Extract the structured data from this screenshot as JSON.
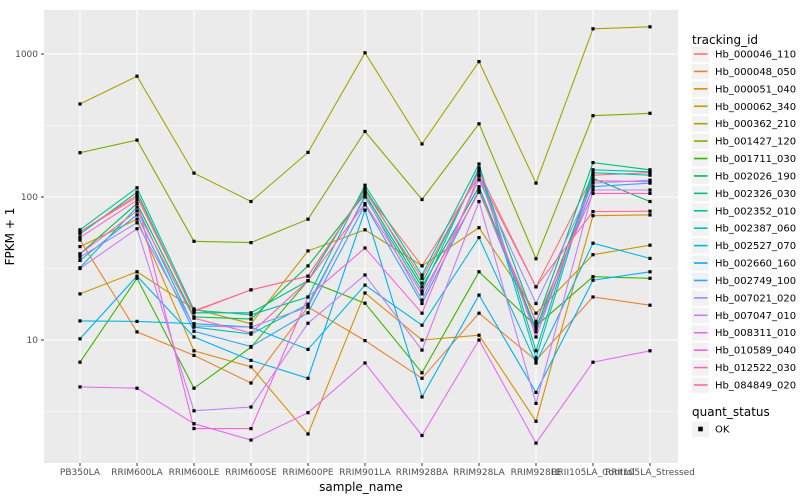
{
  "figure": {
    "background": "#FFFFFF",
    "panel_background": "#EBEBEB",
    "grid_color": "#FFFFFF",
    "tick_label_color": "#4D4D4D",
    "point_color": "#000000"
  },
  "chart_data": {
    "type": "line",
    "title": "",
    "xlabel": "sample_name",
    "ylabel": "FPKM + 1",
    "y_scale": "log10",
    "ylim": [
      1.45,
      2000
    ],
    "y_ticks": [
      1000,
      100,
      10
    ],
    "y_minor_ticks": [
      316.23,
      31.623,
      3.1623
    ],
    "grid": "on",
    "legend_position": "right",
    "legend_title": "tracking_id",
    "legend2_title": "quant_status",
    "quant_status_items": [
      "OK"
    ],
    "categories": [
      "PB350LA",
      "RRIM600LA",
      "RRIM600LE",
      "RRIM600SE",
      "RRIM600PE",
      "RRIM901LA",
      "RRIM928BA",
      "RRIM928LA",
      "RRIM928LE",
      "RRII105LA_Control",
      "RRII105LA_Stressed"
    ],
    "series": [
      {
        "name": "Hb_000046_110",
        "color": "#F8766D",
        "values": [
          57,
          100,
          16,
          22.4,
          28,
          110,
          33,
          140,
          23.5,
          142,
          148
        ]
      },
      {
        "name": "Hb_000048_050",
        "color": "#EA8331",
        "values": [
          50,
          11.4,
          7.8,
          5.0,
          17,
          9.9,
          5.4,
          15.4,
          7.2,
          20,
          17.5
        ]
      },
      {
        "name": "Hb_000051_040",
        "color": "#D89000",
        "values": [
          45,
          70,
          8.4,
          6.5,
          2.2,
          21.3,
          10,
          10.8,
          2.7,
          74,
          75
        ]
      },
      {
        "name": "Hb_000062_340",
        "color": "#C09B00",
        "values": [
          21,
          30,
          16.5,
          13,
          42,
          59,
          33,
          61,
          15.4,
          39.5,
          46
        ]
      },
      {
        "name": "Hb_000362_210",
        "color": "#A3A500",
        "values": [
          447,
          700,
          147,
          93,
          205,
          1020,
          235,
          885,
          125,
          1500,
          1550
        ]
      },
      {
        "name": "Hb_001427_120",
        "color": "#7CAE00",
        "values": [
          204,
          250,
          49,
          48,
          70,
          287,
          96,
          325,
          37,
          370,
          385
        ]
      },
      {
        "name": "Hb_001711_030",
        "color": "#39B600",
        "values": [
          7,
          27,
          4.6,
          8.9,
          26,
          18.1,
          5.9,
          30,
          12.5,
          27.7,
          27
        ]
      },
      {
        "name": "Hb_002026_190",
        "color": "#00BB4E",
        "values": [
          40,
          90,
          14.5,
          14,
          33,
          105,
          23.5,
          118,
          12,
          135,
          93
        ]
      },
      {
        "name": "Hb_002326_030",
        "color": "#00BF7D",
        "values": [
          55,
          108,
          15.5,
          15.5,
          26,
          115,
          25,
          155,
          13.1,
          174,
          155
        ]
      },
      {
        "name": "Hb_002352_010",
        "color": "#00C1A3",
        "values": [
          59,
          116,
          16.2,
          15,
          20,
          121,
          28.5,
          170,
          8.4,
          155,
          150
        ]
      },
      {
        "name": "Hb_002387_060",
        "color": "#00BFC4",
        "values": [
          32,
          85,
          12.3,
          11,
          17.8,
          100,
          22,
          160,
          7.5,
          148,
          142
        ]
      },
      {
        "name": "Hb_002527_070",
        "color": "#00BAE0",
        "values": [
          13.6,
          13.5,
          13,
          12.3,
          8.6,
          24.2,
          12.7,
          52,
          6.9,
          47.5,
          37.2
        ]
      },
      {
        "name": "Hb_002660_160",
        "color": "#00B0F6",
        "values": [
          10.2,
          28,
          10.5,
          7.2,
          5.4,
          81,
          4.0,
          20.6,
          4.3,
          26.2,
          30
        ]
      },
      {
        "name": "Hb_002749_100",
        "color": "#35A2FF",
        "values": [
          36,
          75,
          11.5,
          9,
          15.5,
          88,
          18,
          112,
          11.4,
          118,
          125
        ]
      },
      {
        "name": "Hb_007021_020",
        "color": "#9590FF",
        "values": [
          38,
          66,
          12.5,
          12.3,
          17,
          103,
          19,
          132,
          18,
          125,
          131
        ]
      },
      {
        "name": "Hb_007047_010",
        "color": "#C77CFF",
        "values": [
          31.6,
          60,
          3.2,
          3.4,
          13.1,
          28.5,
          8.5,
          93,
          3.6,
          112,
          112
        ]
      },
      {
        "name": "Hb_008311_010",
        "color": "#E76BF3",
        "values": [
          4.7,
          4.6,
          2.6,
          2.0,
          3.1,
          6.9,
          2.15,
          10,
          1.9,
          7.0,
          8.4
        ]
      },
      {
        "name": "Hb_010589_040",
        "color": "#FA62DB",
        "values": [
          52,
          95,
          2.4,
          2.4,
          20,
          44,
          15.4,
          142,
          10.5,
          130,
          128
        ]
      },
      {
        "name": "Hb_012522_030",
        "color": "#FF62BC",
        "values": [
          40,
          80,
          14.2,
          11.2,
          26,
          90,
          21,
          108,
          13.5,
          106,
          106
        ]
      },
      {
        "name": "Hb_084849_020",
        "color": "#FF6A98",
        "values": [
          57,
          103,
          15.8,
          22.4,
          28,
          110,
          27,
          150,
          23.5,
          79,
          79.5
        ]
      }
    ]
  }
}
